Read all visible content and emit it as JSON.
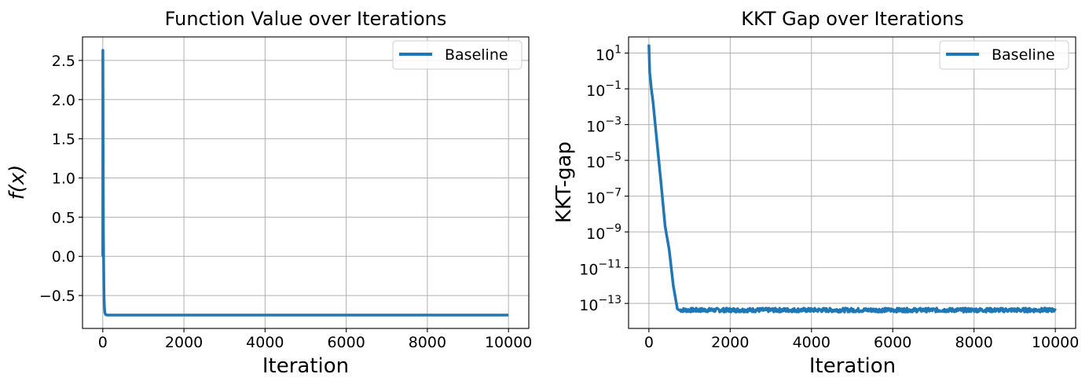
{
  "chart_data": [
    {
      "type": "line",
      "title": "Function Value over Iterations",
      "xlabel": "Iteration",
      "ylabel": "f(x)",
      "xlim": [
        -500,
        10500
      ],
      "ylim": [
        -0.92,
        2.8
      ],
      "xticks": [
        0,
        2000,
        4000,
        6000,
        8000,
        10000
      ],
      "yticks": [
        -0.5,
        0.0,
        0.5,
        1.0,
        1.5,
        2.0,
        2.5
      ],
      "ytick_labels": [
        "−0.5",
        "0.0",
        "0.5",
        "1.0",
        "1.5",
        "2.0",
        "2.5"
      ],
      "grid": true,
      "legend": "top-right",
      "series": [
        {
          "name": "Baseline",
          "color": "#1f77b4",
          "x": [
            0,
            2,
            5,
            8,
            12,
            16,
            20,
            25,
            30,
            40,
            50,
            60,
            75,
            100,
            150,
            200,
            500,
            1000,
            2000,
            4000,
            6000,
            8000,
            10000
          ],
          "y": [
            0.0,
            2.63,
            2.1,
            1.4,
            0.8,
            0.3,
            0.0,
            -0.3,
            -0.5,
            -0.65,
            -0.71,
            -0.735,
            -0.745,
            -0.75,
            -0.75,
            -0.75,
            -0.75,
            -0.75,
            -0.75,
            -0.75,
            -0.75,
            -0.75,
            -0.75
          ]
        }
      ]
    },
    {
      "type": "line",
      "title": "KKT Gap over Iterations",
      "xlabel": "Iteration",
      "ylabel": "KKT-gap",
      "yscale": "log",
      "xlim": [
        -500,
        10500
      ],
      "ylim": [
        4e-15,
        80
      ],
      "xticks": [
        0,
        2000,
        4000,
        6000,
        8000,
        10000
      ],
      "yticks": [
        10,
        0.1,
        0.001,
        1e-05,
        1e-07,
        1e-09,
        1e-11,
        1e-13
      ],
      "ytick_exponents": [
        "1",
        "−1",
        "−3",
        "−5",
        "−7",
        "−9",
        "−11",
        "−13"
      ],
      "ytick_base": "10",
      "grid": true,
      "legend": "top-right",
      "series": [
        {
          "name": "Baseline",
          "color": "#1f77b4",
          "x": [
            0,
            20,
            40,
            60,
            100,
            200,
            300,
            400,
            500,
            600,
            700,
            760
          ],
          "y": [
            30,
            0.8,
            0.3,
            0.1,
            0.02,
            0.0001,
            5e-07,
            2e-09,
            1e-10,
            1e-12,
            5e-14,
            4e-14
          ],
          "plateau": {
            "x_start": 760,
            "x_end": 10000,
            "level": 4e-14,
            "noise_low": 3.3e-14,
            "noise_high": 5.5e-14
          }
        }
      ]
    }
  ]
}
